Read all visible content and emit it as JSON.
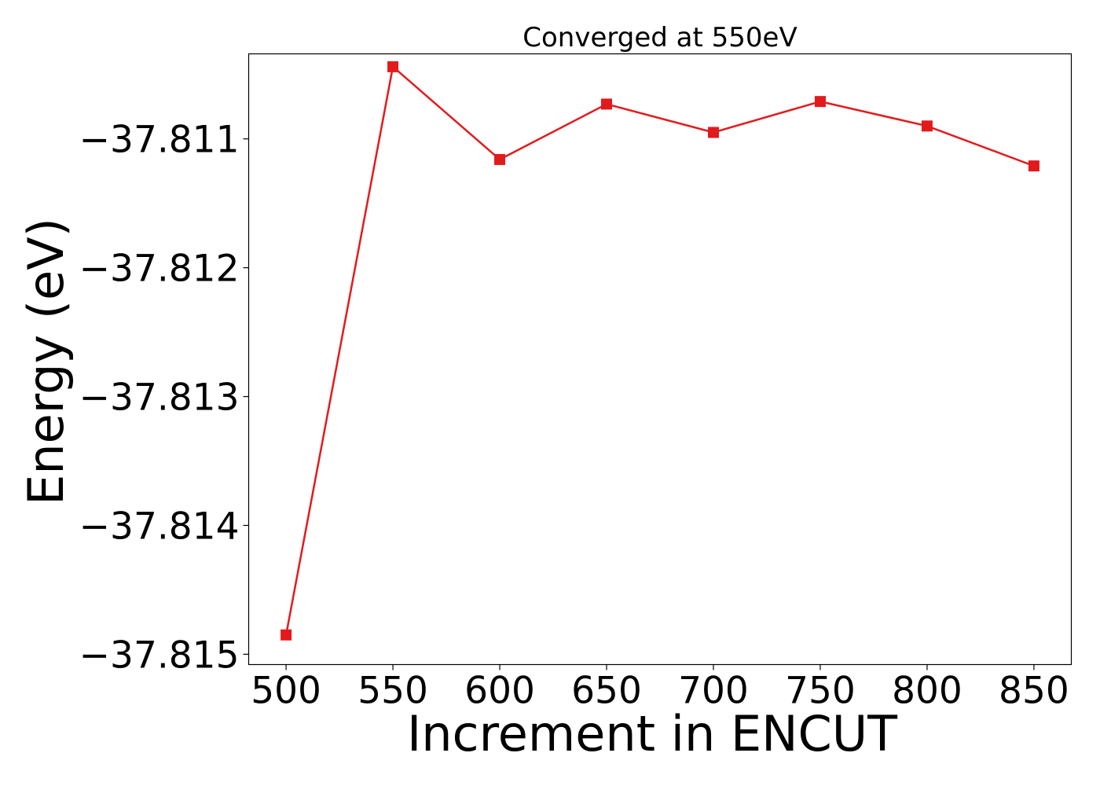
{
  "chart_data": {
    "type": "line",
    "title": "Converged at 550eV",
    "xlabel": "Increment in ENCUT",
    "ylabel": "Energy (eV)",
    "x": [
      500,
      550,
      600,
      650,
      700,
      750,
      800,
      850
    ],
    "series": [
      {
        "values": [
          -37.81485,
          -37.81044,
          -37.81116,
          -37.81073,
          -37.81095,
          -37.81071,
          -37.8109,
          -37.81121
        ],
        "color": "#e31a1c",
        "marker": "square"
      }
    ],
    "xticks": [
      500,
      550,
      600,
      650,
      700,
      750,
      800,
      850
    ],
    "xtick_labels": [
      "500",
      "550",
      "600",
      "650",
      "700",
      "750",
      "800",
      "850"
    ],
    "yticks": [
      -37.811,
      -37.812,
      -37.813,
      -37.814,
      -37.815
    ],
    "ytick_labels": [
      "−37.811",
      "−37.812",
      "−37.813",
      "−37.814",
      "−37.815"
    ],
    "xlim": [
      482.5,
      867.5
    ],
    "ylim": [
      -37.81508,
      -37.81034
    ],
    "grid": false
  }
}
